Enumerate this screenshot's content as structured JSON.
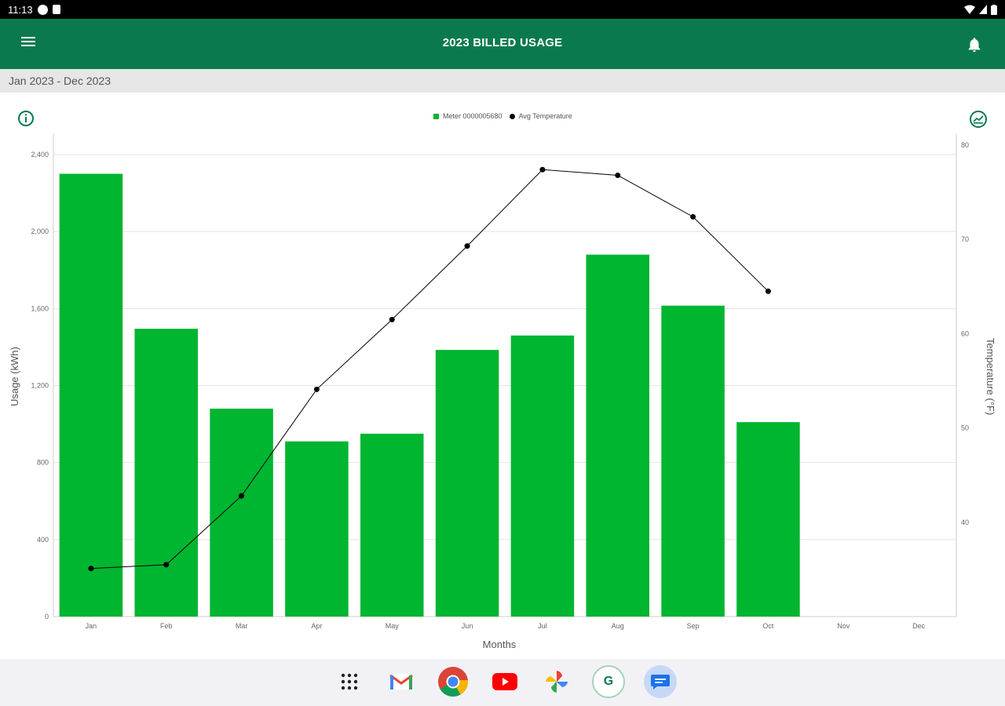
{
  "status_bar": {
    "time": "11:13"
  },
  "app_bar": {
    "title": "2023 BILLED USAGE"
  },
  "date_range": "Jan 2023 - Dec 2023",
  "legend": {
    "meter_label": "Meter 0000005680",
    "temp_label": "Avg Temperature"
  },
  "colors": {
    "header": "#0a7a4e",
    "bar": "#00b530",
    "line": "#000000"
  },
  "chart_data": {
    "type": "bar",
    "categories": [
      "Jan",
      "Feb",
      "Mar",
      "Apr",
      "May",
      "Jun",
      "Jul",
      "Aug",
      "Sep",
      "Oct",
      "Nov",
      "Dec"
    ],
    "xlabel": "Months",
    "ylabel": "Usage (kWh)",
    "y2label": "Temperature (°F)",
    "ylim": [
      0,
      2400
    ],
    "y2lim": [
      30,
      80
    ],
    "yticks": [
      "0",
      "400",
      "800",
      "1,200",
      "1,600",
      "2,000",
      "2,400"
    ],
    "y2ticks": [
      "40",
      "50",
      "60",
      "70",
      "80"
    ],
    "series": [
      {
        "name": "Meter 0000005680",
        "type": "bar",
        "values": [
          2300,
          1495,
          1080,
          910,
          950,
          1385,
          1460,
          1880,
          1615,
          1010,
          null,
          null
        ]
      },
      {
        "name": "Avg Temperature",
        "type": "line",
        "values": [
          35.1,
          35.5,
          42.8,
          54.1,
          61.5,
          69.3,
          77.4,
          76.8,
          72.4,
          64.5,
          null,
          null
        ]
      }
    ],
    "legend_position": "top",
    "grid": true
  },
  "dock": [
    {
      "name": "apps-icon"
    },
    {
      "name": "gmail-icon"
    },
    {
      "name": "chrome-icon"
    },
    {
      "name": "youtube-icon"
    },
    {
      "name": "photos-icon"
    },
    {
      "name": "utility-app-icon",
      "text": "G"
    },
    {
      "name": "messages-icon"
    }
  ]
}
